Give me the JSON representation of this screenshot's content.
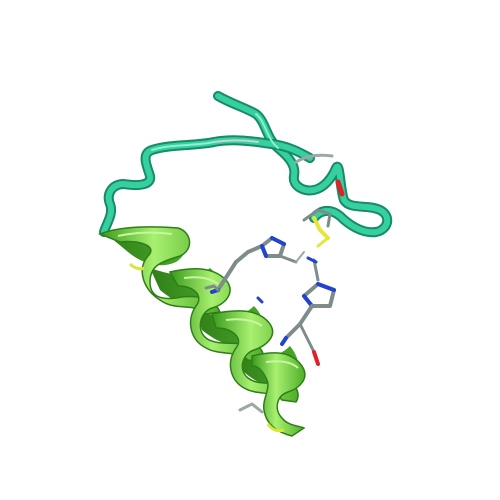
{
  "image": {
    "subject": "protein-cartoon-render",
    "background": "#ffffff",
    "colors": {
      "coil": "#2fc79a",
      "coil_dark": "#1f9e7a",
      "coil_light": "#6fe3bf",
      "helix": "#6fdc3a",
      "helix_dark": "#3a9a1e",
      "helix_light": "#a8f070",
      "stick_carbon": "#7f8c8c",
      "stick_nitrogen": "#2244cc",
      "stick_oxygen": "#e0202a",
      "stick_sulfur": "#e6e63a"
    }
  }
}
